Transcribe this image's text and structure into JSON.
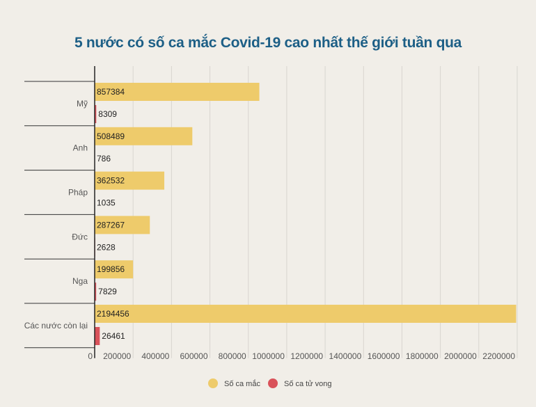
{
  "chart_data": {
    "type": "bar",
    "orientation": "horizontal",
    "title": "5 nước có số ca mắc Covid-19 cao nhất thế giới tuần qua",
    "categories": [
      "Mỹ",
      "Anh",
      "Pháp",
      "Đức",
      "Nga",
      "Các nước còn lại"
    ],
    "series": [
      {
        "name": "Số ca mắc",
        "color": "#eecb6b",
        "values": [
          857384,
          508489,
          362532,
          287267,
          199856,
          2194456
        ]
      },
      {
        "name": "Số ca tử vong",
        "color": "#d9525a",
        "values": [
          8309,
          786,
          1035,
          2628,
          7829,
          26461
        ]
      }
    ],
    "xlim": [
      0,
      2200000
    ],
    "xticks": [
      "0",
      "200000",
      "400000",
      "600000",
      "800000",
      "1000000",
      "1200000",
      "1400000",
      "1600000",
      "1800000",
      "2000000",
      "2200000"
    ],
    "grid": true,
    "legend": "bottom"
  }
}
